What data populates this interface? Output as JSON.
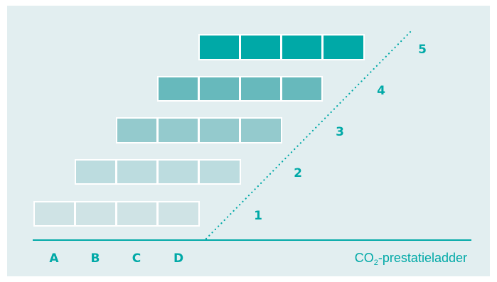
{
  "labels": {
    "title_prefix": "CO",
    "title_subscript": "2",
    "title_suffix": "-prestatieladder",
    "categories": [
      "A",
      "B",
      "C",
      "D"
    ],
    "levels": [
      "1",
      "2",
      "3",
      "4",
      "5"
    ]
  },
  "colors": {
    "background": "#e2eef0",
    "accent": "#00a9a7",
    "level_1": "#cfe3e5",
    "level_2": "#bcdcdf",
    "level_3": "#94cacd",
    "level_4": "#67b9bc",
    "level_5": "#00a9a7"
  }
}
